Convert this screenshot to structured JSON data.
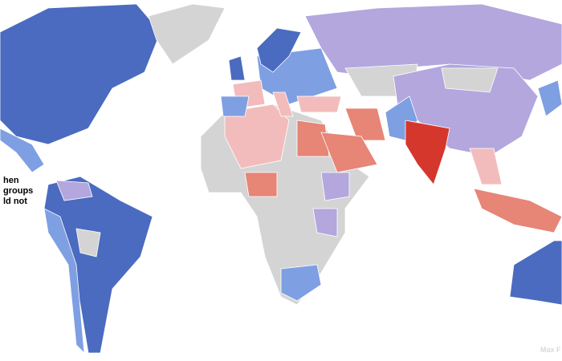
{
  "annotation": {
    "lines": [
      "hen",
      "groups",
      "ld not"
    ]
  },
  "credit": "Max F"
}
